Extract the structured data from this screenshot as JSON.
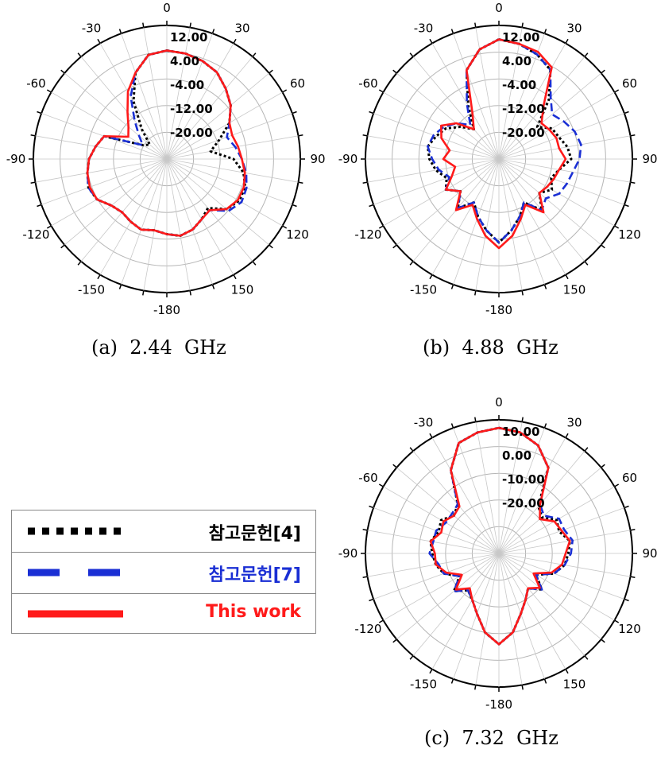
{
  "chart_data": [
    {
      "type": "polar-line",
      "caption": "(a)  2.44  GHz",
      "angle_ticks": [
        "0",
        "30",
        "60",
        "90",
        "120",
        "150",
        "-180",
        "-150",
        "-120",
        "-90",
        "-60",
        "-30"
      ],
      "radial_labels": [
        "12.00",
        "4.00",
        "-4.00",
        "-12.00",
        "-20.00"
      ],
      "rlim": [
        -28,
        20
      ],
      "series": [
        {
          "name": "참고문헌[4]",
          "style": "dotted",
          "color": "#000000",
          "r": [
            11,
            10.5,
            9.5,
            8,
            5,
            2,
            -2,
            -8,
            -12,
            -4,
            0,
            2,
            2,
            0,
            -5,
            -3,
            -1,
            0,
            -1,
            -2,
            -1,
            -2,
            -3,
            -2,
            1,
            2,
            1,
            0,
            -2,
            -4,
            -18,
            -20,
            -14,
            -4,
            5,
            10
          ]
        },
        {
          "name": "참고문헌[7]",
          "style": "dashed",
          "color": "#1a2fd4",
          "r": [
            11,
            10.5,
            9.5,
            8,
            5,
            2,
            -2,
            -5,
            -3,
            -1,
            1,
            2.5,
            3,
            1,
            -4,
            -3,
            -1,
            0,
            -1,
            -2,
            -1,
            -2,
            -3,
            -2,
            1,
            2,
            1,
            0,
            -2,
            -4,
            -18,
            -15,
            -10,
            -2,
            5,
            10
          ]
        },
        {
          "name": "This work",
          "style": "solid",
          "color": "#ff1a1a",
          "r": [
            11,
            10.5,
            9.5,
            8,
            5,
            2,
            -2,
            -3,
            -2,
            -1,
            0.5,
            1.5,
            1.5,
            0,
            -4,
            -3,
            -1,
            0,
            -1,
            -2,
            -1,
            -2,
            -3,
            -2,
            1,
            1.5,
            1,
            0,
            -2,
            -4,
            -12,
            -10,
            -6,
            0,
            5,
            10
          ]
        }
      ]
    },
    {
      "type": "polar-line",
      "caption": "(b)  4.88  GHz",
      "angle_ticks": [
        "0",
        "30",
        "60",
        "90",
        "120",
        "150",
        "-180",
        "-150",
        "-120",
        "-90",
        "-60",
        "-30"
      ],
      "radial_labels": [
        "12.00",
        "4.00",
        "-4.00",
        "-12.00",
        "-20.00"
      ],
      "rlim": [
        -28,
        20
      ],
      "series": [
        {
          "name": "참고문헌[4]",
          "style": "dotted",
          "color": "#000000",
          "r": [
            15,
            14,
            12,
            9,
            0,
            -10,
            -6,
            -5,
            -3,
            -2,
            -6,
            -8,
            -6,
            -9,
            -4,
            -10,
            -6,
            -2,
            2,
            -2,
            -6,
            -10,
            -5,
            -10,
            -6,
            -8,
            -5,
            -3,
            -2,
            -4,
            -6,
            -10,
            -14,
            -6,
            6,
            12
          ]
        },
        {
          "name": "참고문헌[7]",
          "style": "dashed",
          "color": "#1a2fd4",
          "r": [
            15,
            14,
            12,
            9,
            1,
            -3,
            -1,
            1,
            2,
            1,
            -1,
            -2,
            -3,
            -6,
            -4,
            -10,
            -6,
            -2,
            2,
            -2,
            -6,
            -10,
            -5,
            -10,
            -6,
            -9,
            -6,
            -4,
            -2,
            -3,
            -5,
            -8,
            -12,
            -5,
            6,
            12
          ]
        },
        {
          "name": "This work",
          "style": "solid",
          "color": "#ff1a1a",
          "r": [
            15,
            14,
            13,
            10,
            -3,
            -8,
            -7,
            -6,
            -6,
            -4,
            -6,
            -7,
            -8,
            -9,
            -3,
            -9,
            -5,
            0,
            4,
            0,
            -5,
            -9,
            -4,
            -10,
            -6,
            -10,
            -12,
            -8,
            -10,
            -6,
            -4,
            -8,
            -14,
            -9,
            6,
            12
          ]
        }
      ]
    },
    {
      "type": "polar-line",
      "caption": "(c)  7.32  GHz",
      "angle_ticks": [
        "0",
        "30",
        "60",
        "90",
        "120",
        "150",
        "-180",
        "-150",
        "-120",
        "-90",
        "-60",
        "-30"
      ],
      "radial_labels": [
        "10.00",
        "0.00",
        "-10.00",
        "-20.00"
      ],
      "rlim": [
        -30,
        20
      ],
      "series": [
        {
          "name": "참고문헌[4]",
          "style": "dotted",
          "color": "#000000",
          "r": [
            17,
            16,
            13,
            7,
            -7,
            -9,
            -5,
            -6,
            -3,
            -4,
            -5,
            -8,
            -14,
            -9,
            -13,
            -10,
            -6,
            0,
            4,
            0,
            -6,
            -10,
            -12,
            -8,
            -13,
            -8,
            -6,
            -5,
            -4,
            -6,
            -5,
            -8,
            -6,
            6,
            14,
            16
          ]
        },
        {
          "name": "참고문헌[7]",
          "style": "dashed",
          "color": "#1a2fd4",
          "r": [
            17,
            16,
            13,
            7,
            -6,
            -8,
            -4,
            -4,
            -2,
            -3,
            -5,
            -8,
            -14,
            -9,
            -13,
            -10,
            -6,
            0,
            4,
            0,
            -6,
            -10,
            -12,
            -8,
            -13,
            -8,
            -7,
            -4,
            -5,
            -5,
            -7,
            -7,
            -6,
            6,
            14,
            16
          ]
        },
        {
          "name": "This work",
          "style": "solid",
          "color": "#ff1a1a",
          "r": [
            17,
            16,
            13,
            7,
            -6,
            -10,
            -6,
            -5,
            -3,
            -5,
            -6,
            -9,
            -15,
            -10,
            -13,
            -10,
            -6,
            0,
            4,
            0,
            -6,
            -10,
            -13,
            -9,
            -14,
            -9,
            -6,
            -6,
            -4,
            -7,
            -6,
            -8,
            -7,
            6,
            14,
            16
          ]
        }
      ]
    }
  ],
  "legend": {
    "items": [
      {
        "label": "참고문헌[4]",
        "color": "#000000",
        "text_color": "#000000",
        "style": "dotted"
      },
      {
        "label": "참고문헌[7]",
        "color": "#1a2fd4",
        "text_color": "#1a2fd4",
        "style": "dashed"
      },
      {
        "label": "This work",
        "color": "#ff1a1a",
        "text_color": "#ff1a1a",
        "style": "solid"
      }
    ]
  }
}
